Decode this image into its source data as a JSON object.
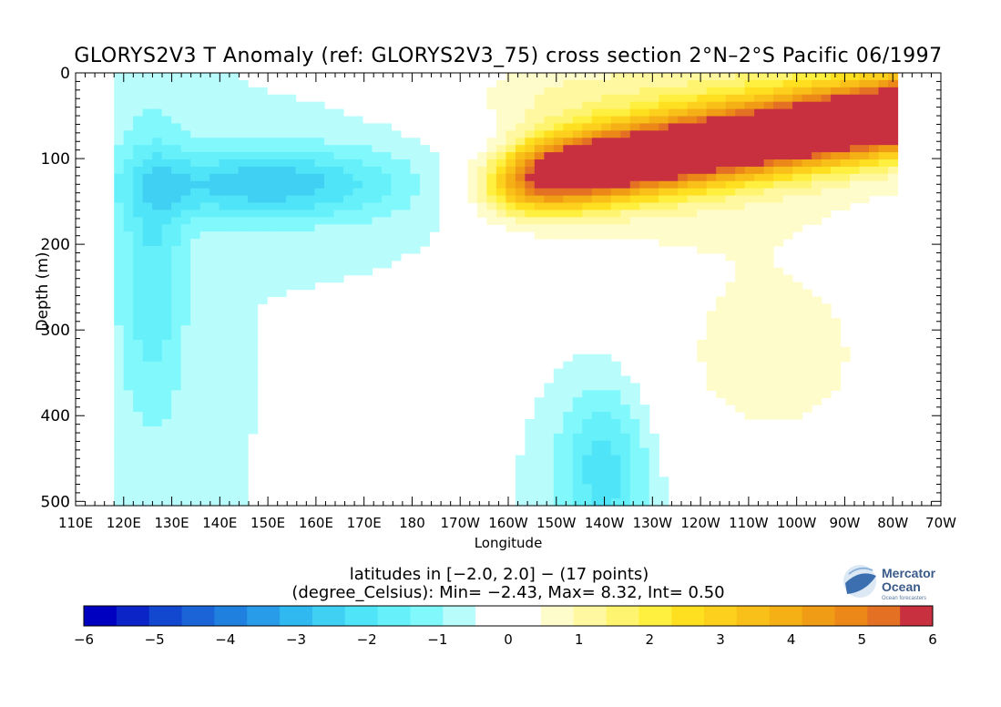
{
  "chart_data": {
    "type": "heatmap",
    "title": "GLORYS2V3 T Anomaly (ref: GLORYS2V3_75) cross section 2°N–2°S Pacific 06/1997",
    "xlabel": "Longitude",
    "ylabel": "Depth (m)",
    "x_range": [
      110,
      290
    ],
    "y_range": [
      0,
      505
    ],
    "x_ticks": [
      {
        "value": 110,
        "label": "110E"
      },
      {
        "value": 120,
        "label": "120E"
      },
      {
        "value": 130,
        "label": "130E"
      },
      {
        "value": 140,
        "label": "140E"
      },
      {
        "value": 150,
        "label": "150E"
      },
      {
        "value": 160,
        "label": "160E"
      },
      {
        "value": 170,
        "label": "170E"
      },
      {
        "value": 180,
        "label": "180"
      },
      {
        "value": 190,
        "label": "170W"
      },
      {
        "value": 200,
        "label": "160W"
      },
      {
        "value": 210,
        "label": "150W"
      },
      {
        "value": 220,
        "label": "140W"
      },
      {
        "value": 230,
        "label": "130W"
      },
      {
        "value": 240,
        "label": "120W"
      },
      {
        "value": 250,
        "label": "110W"
      },
      {
        "value": 260,
        "label": "100W"
      },
      {
        "value": 270,
        "label": "90W"
      },
      {
        "value": 280,
        "label": "80W"
      },
      {
        "value": 290,
        "label": "70W"
      }
    ],
    "y_ticks": [
      {
        "value": 0,
        "label": "0"
      },
      {
        "value": 100,
        "label": "100"
      },
      {
        "value": 200,
        "label": "200"
      },
      {
        "value": 300,
        "label": "300"
      },
      {
        "value": 400,
        "label": "400"
      },
      {
        "value": 500,
        "label": "500"
      }
    ],
    "data_lon_range": [
      118,
      281
    ],
    "anomaly_features": [
      {
        "kind": "warm_thermocline_core",
        "lon_from": 195,
        "lon_to": 281,
        "depth_from": 130,
        "depth_to": 50,
        "thickness": 50,
        "peak": 8.3
      },
      {
        "kind": "cold_west_thermocline",
        "lon": 150,
        "depth": 130,
        "lon_width": 40,
        "depth_width": 60,
        "peak": -2.4
      },
      {
        "kind": "cold_west_deep",
        "lon": 126,
        "depth": 230,
        "lon_width": 10,
        "depth_width": 250,
        "peak": -1.5
      },
      {
        "kind": "cold_central_deep",
        "lon": 220,
        "depth": 460,
        "lon_width": 14,
        "depth_width": 150,
        "peak": -2.0
      },
      {
        "kind": "warm_east_deep",
        "lon": 255,
        "depth": 330,
        "lon_width": 50,
        "depth_width": 250,
        "peak": 1.2
      }
    ],
    "colorbar": {
      "min": -6,
      "max": 6,
      "step": 0.5,
      "tick_values": [
        -6,
        -5,
        -4,
        -3,
        -2,
        -1,
        0,
        1,
        2,
        3,
        4,
        5,
        6
      ],
      "tick_labels": [
        "−6",
        "−5",
        "−4",
        "−3",
        "−2",
        "−1",
        "0",
        "1",
        "2",
        "3",
        "4",
        "5",
        "6"
      ],
      "colors": [
        "#0000c0",
        "#0a24c8",
        "#1248d0",
        "#1a64d8",
        "#2080e0",
        "#289ce8",
        "#30b8f0",
        "#40d0f4",
        "#50e4f8",
        "#66f0fa",
        "#80f8fc",
        "#b8fcfc",
        "#ffffff",
        "#ffffff",
        "#fffccc",
        "#fff8a0",
        "#fff470",
        "#fff040",
        "#ffe020",
        "#fcd01c",
        "#f8c018",
        "#f4b014",
        "#f09c14",
        "#ec8818",
        "#e47024",
        "#c83040"
      ]
    }
  },
  "info_line1": "latitudes in [−2.0, 2.0] − (17 points)",
  "info_line2": "(degree_Celsius): Min= −2.43, Max= 8.32, Int= 0.50",
  "logo": {
    "line1": "Mercator",
    "line2": "Ocean",
    "tagline": "Ocean forecasters"
  }
}
